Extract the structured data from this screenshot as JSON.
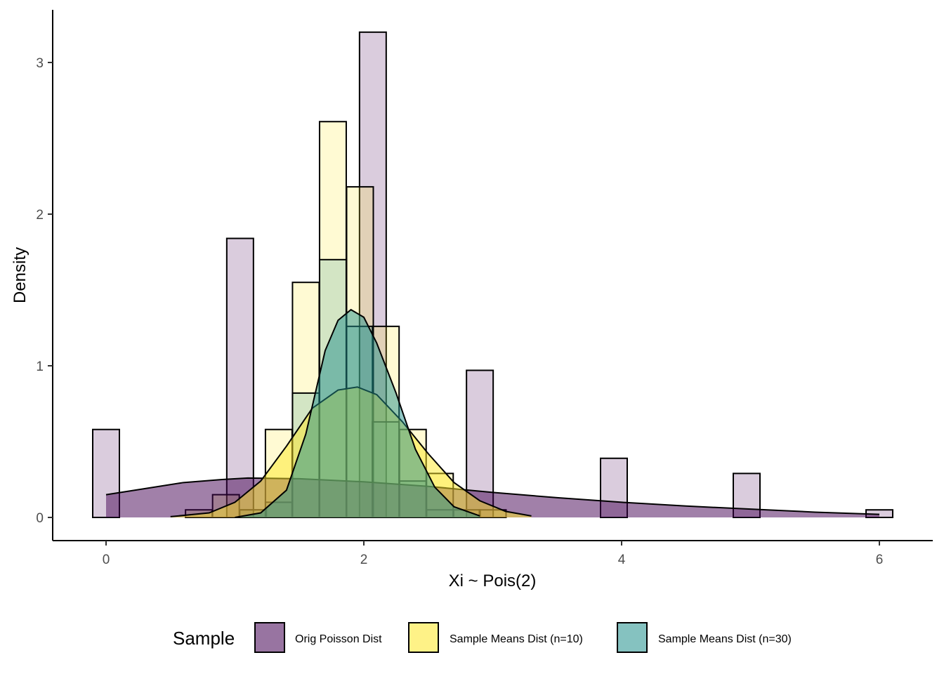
{
  "chart_data": {
    "type": "histogram",
    "title": "",
    "xlabel": "Xi ~ Pois(2)",
    "ylabel": "Density",
    "xlim": [
      -0.2,
      6.2
    ],
    "ylim": [
      -0.15,
      3.35
    ],
    "x_ticks": [
      0,
      2,
      4,
      6
    ],
    "y_ticks": [
      0,
      1,
      2,
      3
    ],
    "bin_width": 0.207,
    "grid": false,
    "legend_position": "bottom",
    "legend_title": "Sample",
    "series": [
      {
        "name": "Orig Poisson Dist",
        "fill": "#440154",
        "bars": [
          {
            "x": 0,
            "y": 0.58
          },
          {
            "x": 1.04,
            "y": 1.84
          },
          {
            "x": 2.07,
            "y": 3.2
          },
          {
            "x": 2.9,
            "y": 0.97
          },
          {
            "x": 3.94,
            "y": 0.39
          },
          {
            "x": 4.97,
            "y": 0.29
          },
          {
            "x": 6.0,
            "y": 0.05
          }
        ],
        "density": [
          [
            0.0,
            0.15
          ],
          [
            0.3,
            0.19
          ],
          [
            0.6,
            0.23
          ],
          [
            0.9,
            0.25
          ],
          [
            1.1,
            0.26
          ],
          [
            1.5,
            0.255
          ],
          [
            2.0,
            0.235
          ],
          [
            2.5,
            0.205
          ],
          [
            3.0,
            0.165
          ],
          [
            3.5,
            0.13
          ],
          [
            4.0,
            0.1
          ],
          [
            4.5,
            0.075
          ],
          [
            5.0,
            0.055
          ],
          [
            5.5,
            0.035
          ],
          [
            6.0,
            0.02
          ]
        ]
      },
      {
        "name": "Sample Means Dist (n=10)",
        "fill": "#FDE725",
        "bars": [
          {
            "x": 0.72,
            "y": 0.05
          },
          {
            "x": 0.93,
            "y": 0.15
          },
          {
            "x": 1.14,
            "y": 0.05
          },
          {
            "x": 1.34,
            "y": 0.58
          },
          {
            "x": 1.55,
            "y": 1.55
          },
          {
            "x": 1.76,
            "y": 2.61
          },
          {
            "x": 1.97,
            "y": 2.18
          },
          {
            "x": 2.17,
            "y": 1.26
          },
          {
            "x": 2.38,
            "y": 0.58
          },
          {
            "x": 2.59,
            "y": 0.29
          },
          {
            "x": 2.8,
            "y": 0.05
          },
          {
            "x": 3.0,
            "y": 0.05
          }
        ],
        "density": [
          [
            0.5,
            0.005
          ],
          [
            0.8,
            0.03
          ],
          [
            1.0,
            0.1
          ],
          [
            1.2,
            0.24
          ],
          [
            1.4,
            0.47
          ],
          [
            1.6,
            0.72
          ],
          [
            1.8,
            0.84
          ],
          [
            1.95,
            0.86
          ],
          [
            2.1,
            0.81
          ],
          [
            2.3,
            0.63
          ],
          [
            2.5,
            0.42
          ],
          [
            2.7,
            0.23
          ],
          [
            2.9,
            0.11
          ],
          [
            3.1,
            0.04
          ],
          [
            3.3,
            0.01
          ]
        ]
      },
      {
        "name": "Sample Means Dist (n=30)",
        "fill": "#21908C",
        "bars": [
          {
            "x": 1.14,
            "y": 0.05
          },
          {
            "x": 1.34,
            "y": 0.1
          },
          {
            "x": 1.55,
            "y": 0.82
          },
          {
            "x": 1.76,
            "y": 1.7
          },
          {
            "x": 1.97,
            "y": 1.26
          },
          {
            "x": 2.17,
            "y": 0.63
          },
          {
            "x": 2.38,
            "y": 0.24
          },
          {
            "x": 2.59,
            "y": 0.05
          }
        ],
        "density": [
          [
            1.0,
            0.0
          ],
          [
            1.2,
            0.03
          ],
          [
            1.4,
            0.18
          ],
          [
            1.55,
            0.55
          ],
          [
            1.7,
            1.1
          ],
          [
            1.8,
            1.3
          ],
          [
            1.9,
            1.37
          ],
          [
            2.0,
            1.32
          ],
          [
            2.1,
            1.15
          ],
          [
            2.25,
            0.82
          ],
          [
            2.4,
            0.45
          ],
          [
            2.55,
            0.2
          ],
          [
            2.7,
            0.07
          ],
          [
            2.9,
            0.01
          ]
        ]
      }
    ]
  }
}
